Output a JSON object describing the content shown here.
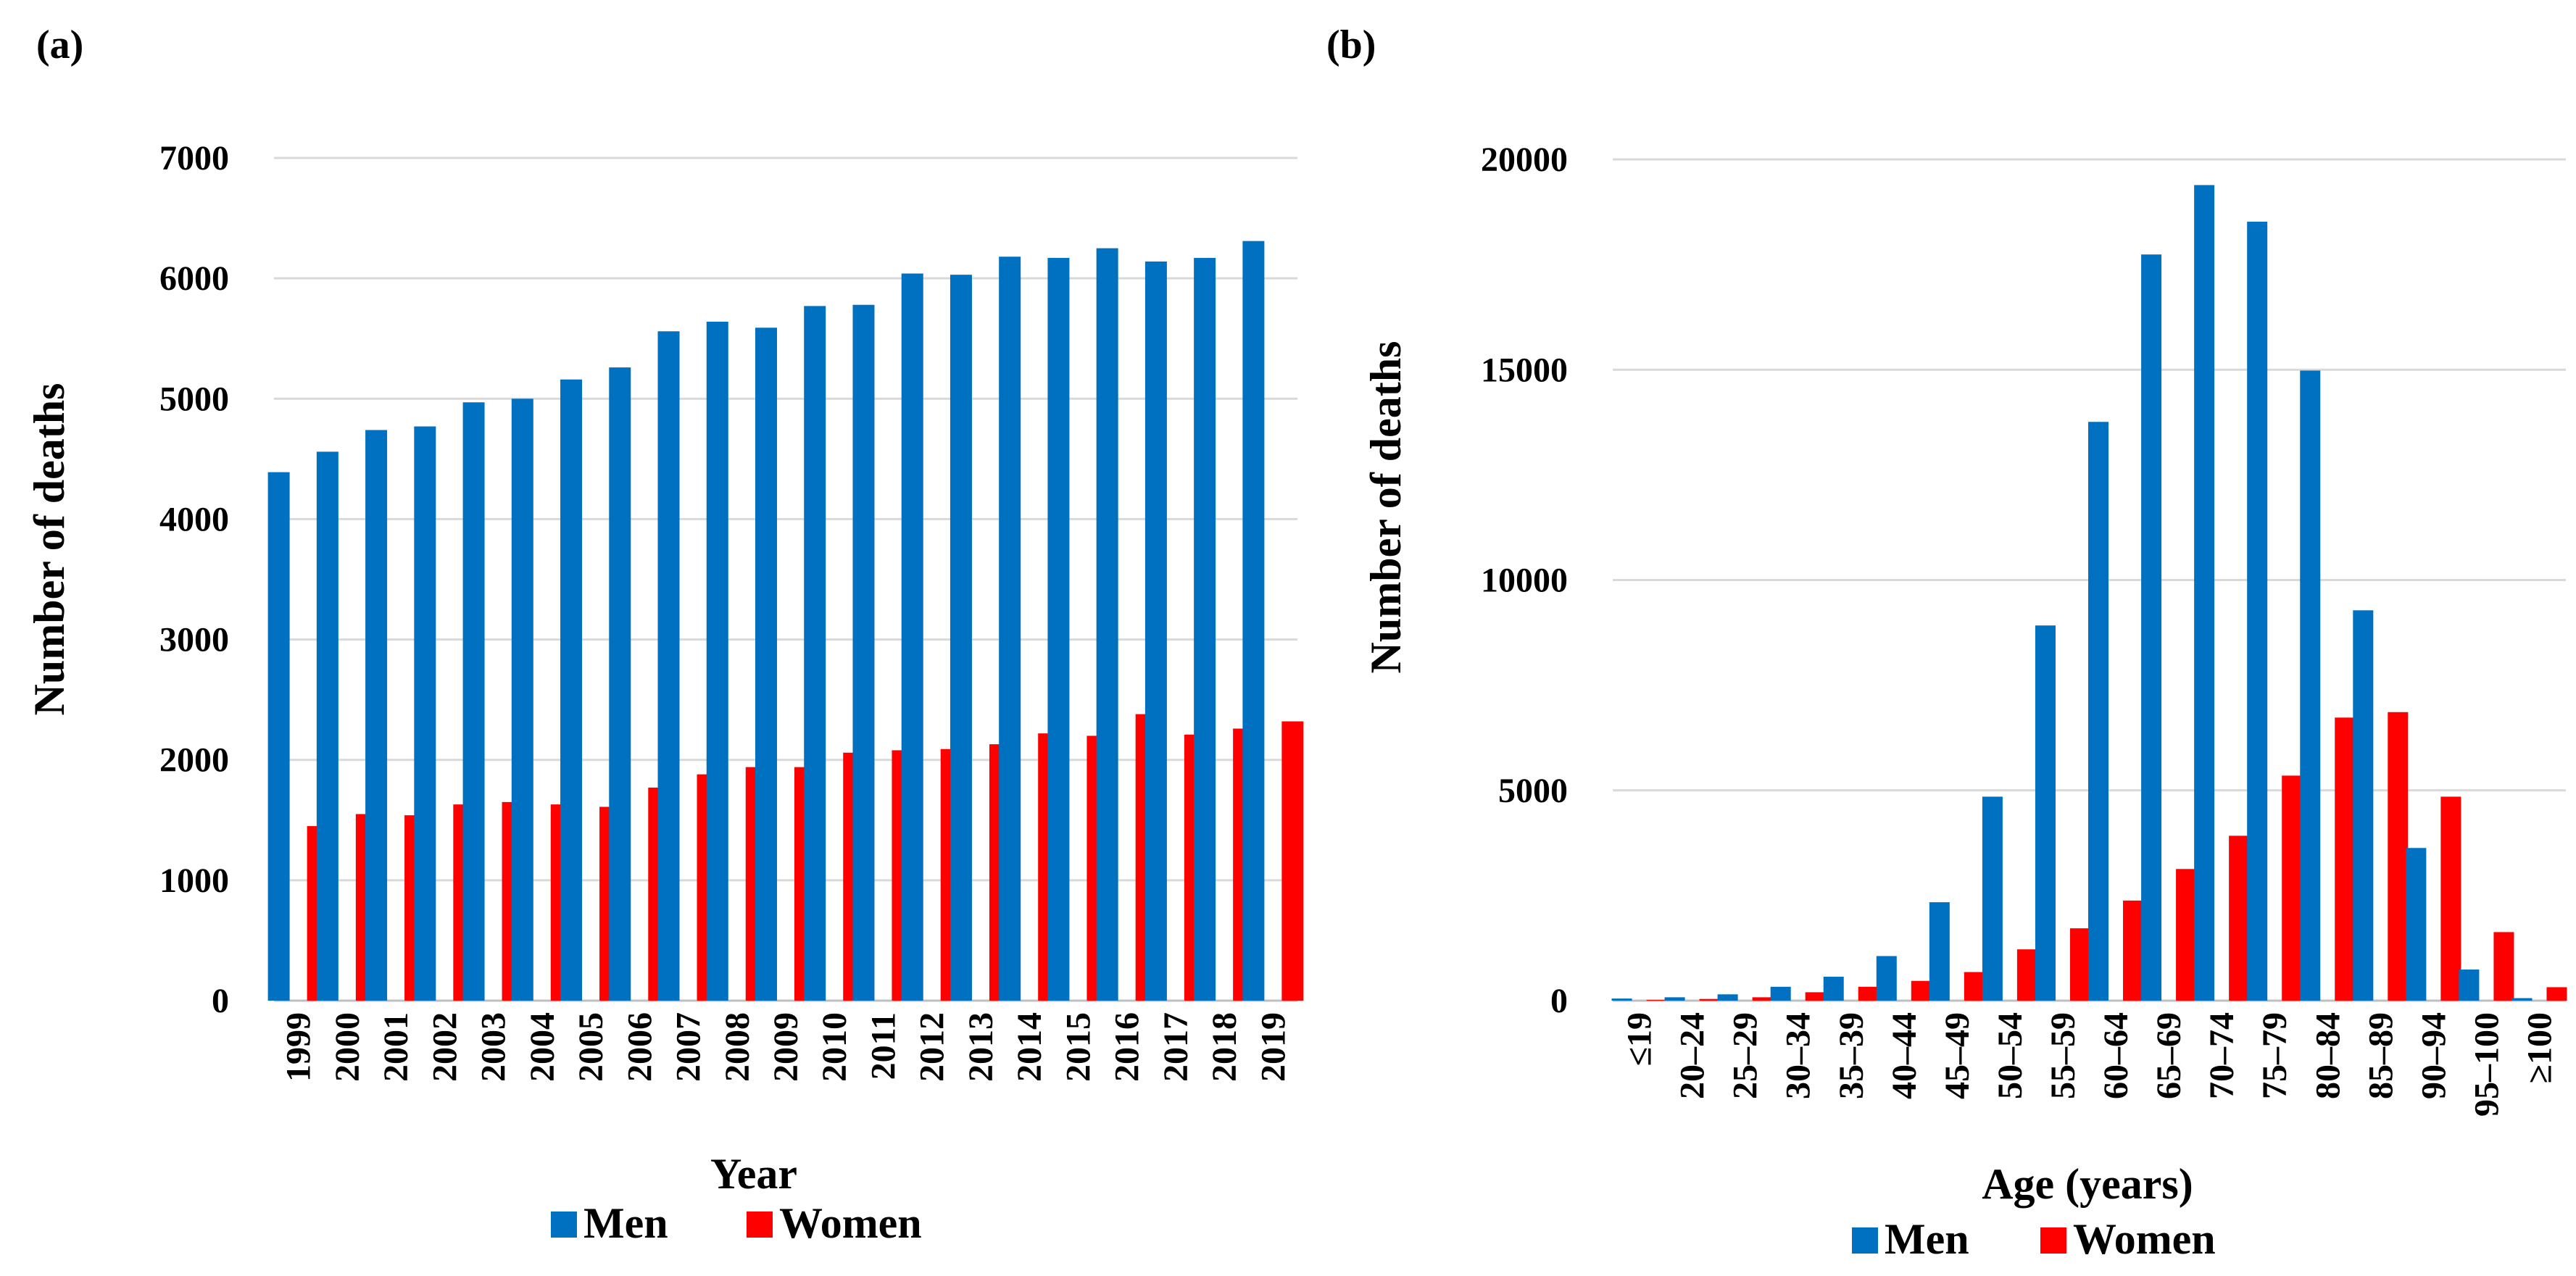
{
  "colors": {
    "men": "#0070C0",
    "women": "#FF0000"
  },
  "chart_data": [
    {
      "panel_label": "(a)",
      "type": "bar",
      "xlabel": "Year",
      "ylabel": "Number of deaths",
      "ylim": [
        0,
        7000
      ],
      "yticks": [
        "0",
        "1000",
        "2000",
        "3000",
        "4000",
        "5000",
        "6000",
        "7000"
      ],
      "categories": [
        "1999",
        "2000",
        "2001",
        "2002",
        "2003",
        "2004",
        "2005",
        "2006",
        "2007",
        "2008",
        "2009",
        "2010",
        "2011",
        "2012",
        "2013",
        "2014",
        "2015",
        "2016",
        "2017",
        "2018",
        "2019"
      ],
      "series": [
        {
          "name": "Men",
          "values": [
            4390,
            4560,
            4740,
            4770,
            4970,
            5000,
            5160,
            5260,
            5560,
            5640,
            5590,
            5770,
            5780,
            6040,
            6030,
            6180,
            6170,
            6250,
            6140,
            6170,
            6310
          ]
        },
        {
          "name": "Women",
          "values": [
            1450,
            1550,
            1540,
            1630,
            1650,
            1630,
            1610,
            1770,
            1880,
            1940,
            1940,
            2060,
            2080,
            2090,
            2130,
            2220,
            2200,
            2380,
            2210,
            2260,
            2320
          ]
        }
      ],
      "legend": [
        "Men",
        "Women"
      ],
      "legend_position": "bottom"
    },
    {
      "panel_label": "(b)",
      "type": "bar",
      "xlabel": "Age (years)",
      "ylabel": "Number of deaths",
      "ylim": [
        0,
        20000
      ],
      "yticks": [
        "0",
        "5000",
        "10000",
        "15000",
        "20000"
      ],
      "categories": [
        "≤19",
        "20–24",
        "25–29",
        "30–34",
        "35–39",
        "40–44",
        "45–49",
        "50–54",
        "55–59",
        "60–64",
        "65–69",
        "70–74",
        "75–79",
        "80–84",
        "85–89",
        "90–94",
        "95–100",
        "≥100"
      ],
      "series": [
        {
          "name": "Men",
          "values": [
            50,
            80,
            150,
            330,
            570,
            1060,
            2340,
            4850,
            8920,
            13760,
            17740,
            19390,
            18520,
            14980,
            9280,
            3630,
            740,
            60
          ]
        },
        {
          "name": "Women",
          "values": [
            20,
            40,
            80,
            200,
            330,
            470,
            680,
            1220,
            1720,
            2380,
            3130,
            3920,
            5350,
            6730,
            6860,
            4850,
            1630,
            320
          ]
        }
      ],
      "legend": [
        "Men",
        "Women"
      ],
      "legend_position": "bottom"
    }
  ]
}
